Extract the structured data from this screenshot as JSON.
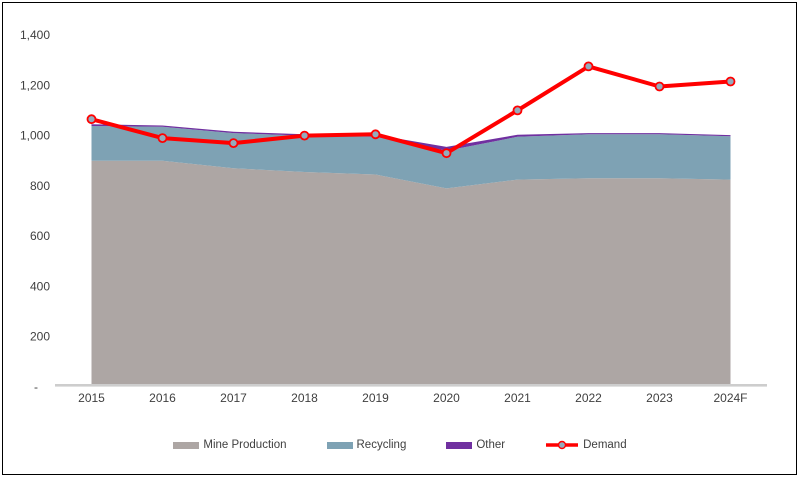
{
  "chart_data": {
    "type": "area",
    "subtype": "stacked-area-with-line",
    "title": "",
    "categories": [
      "2015",
      "2016",
      "2017",
      "2018",
      "2019",
      "2020",
      "2021",
      "2022",
      "2023",
      "2024F"
    ],
    "series": [
      {
        "name": "Mine Production",
        "type": "area",
        "color": "#ADA6A4",
        "values": [
          900,
          900,
          870,
          855,
          845,
          790,
          825,
          830,
          830,
          825
        ]
      },
      {
        "name": "Recycling",
        "type": "area",
        "color": "#7EA2B4",
        "values": [
          138,
          135,
          140,
          145,
          150,
          150,
          170,
          175,
          175,
          172
        ]
      },
      {
        "name": "Other",
        "type": "area",
        "color": "#7030A0",
        "values": [
          7,
          5,
          5,
          5,
          8,
          15,
          8,
          5,
          5,
          5
        ]
      },
      {
        "name": "Demand",
        "type": "line",
        "color": "#FF0000",
        "marker_fill": "#95ABBC",
        "values": [
          1065,
          990,
          970,
          1000,
          1005,
          930,
          1100,
          1275,
          1195,
          1215
        ]
      }
    ],
    "xlabel": "",
    "ylabel": "",
    "ylim": [
      0,
      1400
    ],
    "ytick_interval": 200,
    "ytick_labels": [
      "-",
      "200",
      "400",
      "600",
      "800",
      "1,000",
      "1,200",
      "1,400"
    ],
    "grid": "off",
    "legend_position": "bottom"
  },
  "style": {
    "text_color": "#404040",
    "axis_line_color": "#CDCDCD",
    "frame_border_color": "#000000",
    "background": "#FFFFFF",
    "demand_line_width": 4
  }
}
